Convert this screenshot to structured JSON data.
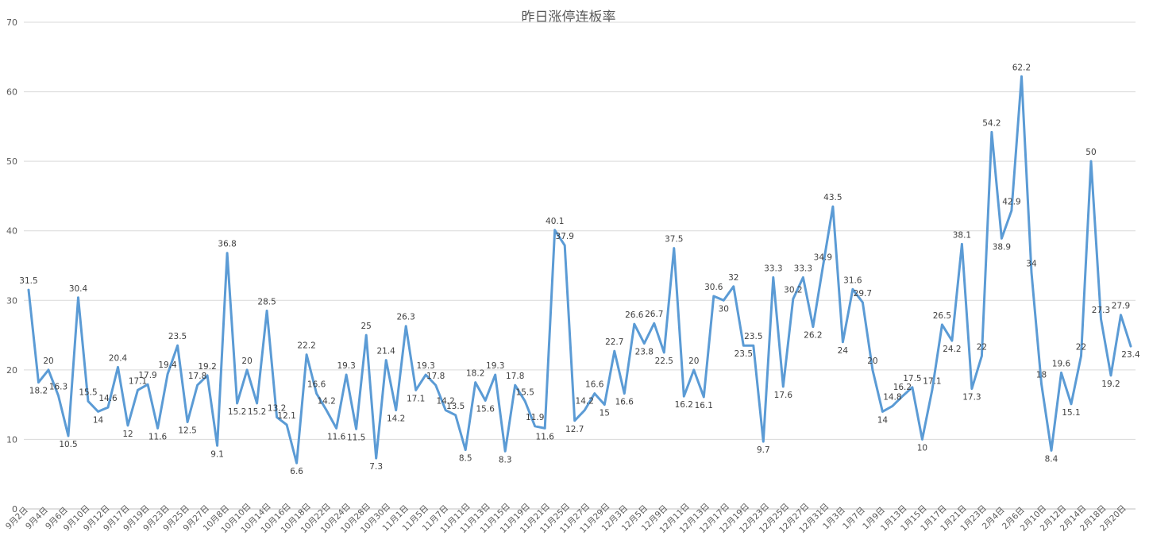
{
  "chart_data": {
    "type": "line",
    "title": "昨日涨停连板率",
    "xlabel": "",
    "ylabel": "",
    "ylim": [
      0,
      70
    ],
    "yticks": [
      0,
      10,
      20,
      30,
      40,
      50,
      60,
      70
    ],
    "grid": true,
    "legend": "none",
    "colors": {
      "line": "#5b9bd5",
      "grid": "#d9d9d9",
      "text": "#595959"
    },
    "x_tick_labels": [
      "9月2日",
      "9月4日",
      "9月6日",
      "9月10日",
      "9月12日",
      "9月17日",
      "9月19日",
      "9月23日",
      "9月25日",
      "9月27日",
      "10月8日",
      "10月10日",
      "10月14日",
      "10月16日",
      "10月18日",
      "10月22日",
      "10月24日",
      "10月28日",
      "10月30日",
      "11月1日",
      "11月5日",
      "11月7日",
      "11月11日",
      "11月13日",
      "11月15日",
      "11月19日",
      "11月21日",
      "11月25日",
      "11月27日",
      "11月29日",
      "12月3日",
      "12月5日",
      "12月9日",
      "12月11日",
      "12月13日",
      "12月17日",
      "12月19日",
      "12月23日",
      "12月25日",
      "12月27日",
      "12月31日",
      "1月3日",
      "1月7日",
      "1月9日",
      "1月13日",
      "1月15日",
      "1月17日",
      "1月21日",
      "1月23日",
      "2月4日",
      "2月6日",
      "2月10日",
      "2月12日",
      "2月14日",
      "2月18日",
      "2月20日"
    ],
    "series": [
      {
        "values": [
          31.5,
          18.2,
          20,
          16.3,
          10.5,
          30.4,
          15.5,
          14,
          14.6,
          20.4,
          12,
          17.1,
          17.9,
          11.6,
          19.4,
          23.5,
          12.5,
          17.8,
          19.2,
          9.1,
          36.8,
          15.2,
          20,
          15.2,
          28.5,
          13.2,
          12.1,
          6.6,
          22.2,
          16.6,
          14.2,
          11.6,
          19.3,
          11.5,
          25,
          7.3,
          21.4,
          14.2,
          26.3,
          17.1,
          19.3,
          17.8,
          14.2,
          13.5,
          8.5,
          18.2,
          15.6,
          19.3,
          8.3,
          17.8,
          15.5,
          11.9,
          11.6,
          40.1,
          37.9,
          12.7,
          14.2,
          16.6,
          15,
          22.7,
          16.6,
          26.6,
          23.8,
          26.7,
          22.5,
          37.5,
          16.2,
          20,
          16.1,
          30.6,
          30,
          32,
          23.5,
          23.5,
          9.7,
          33.3,
          17.6,
          30.2,
          33.3,
          26.2,
          34.9,
          43.5,
          24,
          31.6,
          29.7,
          20,
          14,
          14.8,
          16.2,
          17.5,
          10,
          17.1,
          26.5,
          24.2,
          38.1,
          17.3,
          22,
          54.2,
          38.9,
          42.9,
          62.2,
          34,
          18,
          8.4,
          19.6,
          15.1,
          22,
          50,
          27.3,
          19.2,
          27.9,
          23.4
        ]
      }
    ]
  }
}
